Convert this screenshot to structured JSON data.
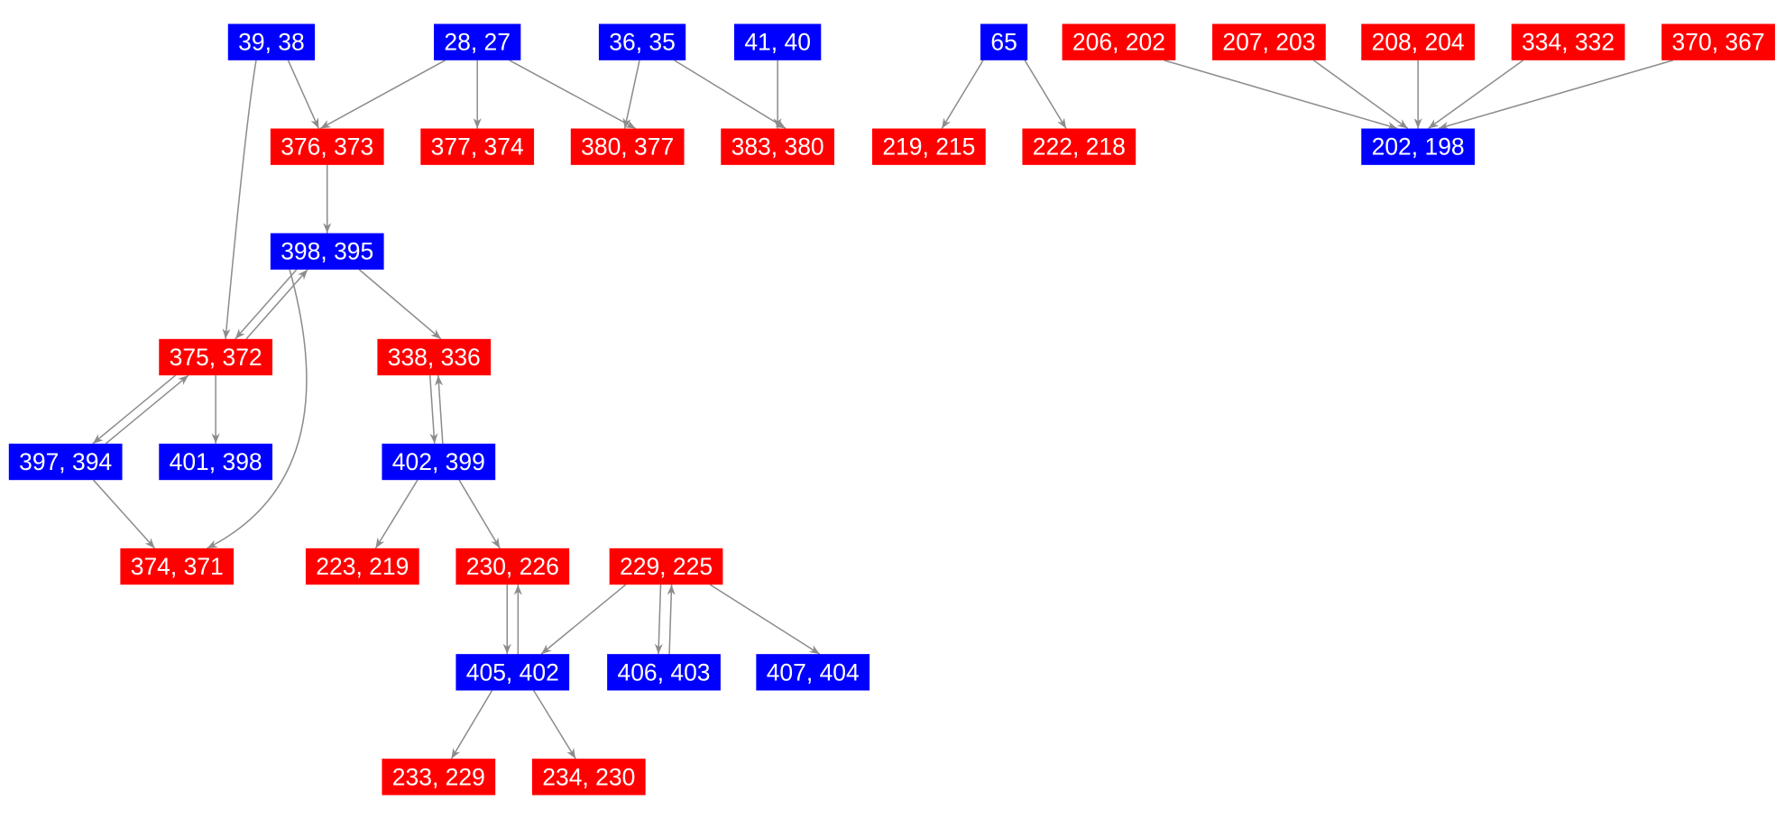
{
  "colors": {
    "blue": "#0000ff",
    "red": "#ff0000"
  },
  "nodes": [
    {
      "label": "39, 38",
      "color": "blue"
    },
    {
      "label": "28, 27",
      "color": "blue"
    },
    {
      "label": "36, 35",
      "color": "blue"
    },
    {
      "label": "41, 40",
      "color": "blue"
    },
    {
      "label": "65",
      "color": "blue"
    },
    {
      "label": "206, 202",
      "color": "red"
    },
    {
      "label": "207, 203",
      "color": "red"
    },
    {
      "label": "208, 204",
      "color": "red"
    },
    {
      "label": "334, 332",
      "color": "red"
    },
    {
      "label": "370, 367",
      "color": "red"
    },
    {
      "label": "376, 373",
      "color": "red"
    },
    {
      "label": "377, 374",
      "color": "red"
    },
    {
      "label": "380, 377",
      "color": "red"
    },
    {
      "label": "383, 380",
      "color": "red"
    },
    {
      "label": "219, 215",
      "color": "red"
    },
    {
      "label": "222, 218",
      "color": "red"
    },
    {
      "label": "202, 198",
      "color": "blue"
    },
    {
      "label": "398, 395",
      "color": "blue"
    },
    {
      "label": "375, 372",
      "color": "red"
    },
    {
      "label": "338, 336",
      "color": "red"
    },
    {
      "label": "397, 394",
      "color": "blue"
    },
    {
      "label": "401, 398",
      "color": "blue"
    },
    {
      "label": "402, 399",
      "color": "blue"
    },
    {
      "label": "374, 371",
      "color": "red"
    },
    {
      "label": "223, 219",
      "color": "red"
    },
    {
      "label": "230, 226",
      "color": "red"
    },
    {
      "label": "229, 225",
      "color": "red"
    },
    {
      "label": "405, 402",
      "color": "blue"
    },
    {
      "label": "406, 403",
      "color": "blue"
    },
    {
      "label": "407, 404",
      "color": "blue"
    },
    {
      "label": "233, 229",
      "color": "red"
    },
    {
      "label": "234, 230",
      "color": "red"
    }
  ]
}
